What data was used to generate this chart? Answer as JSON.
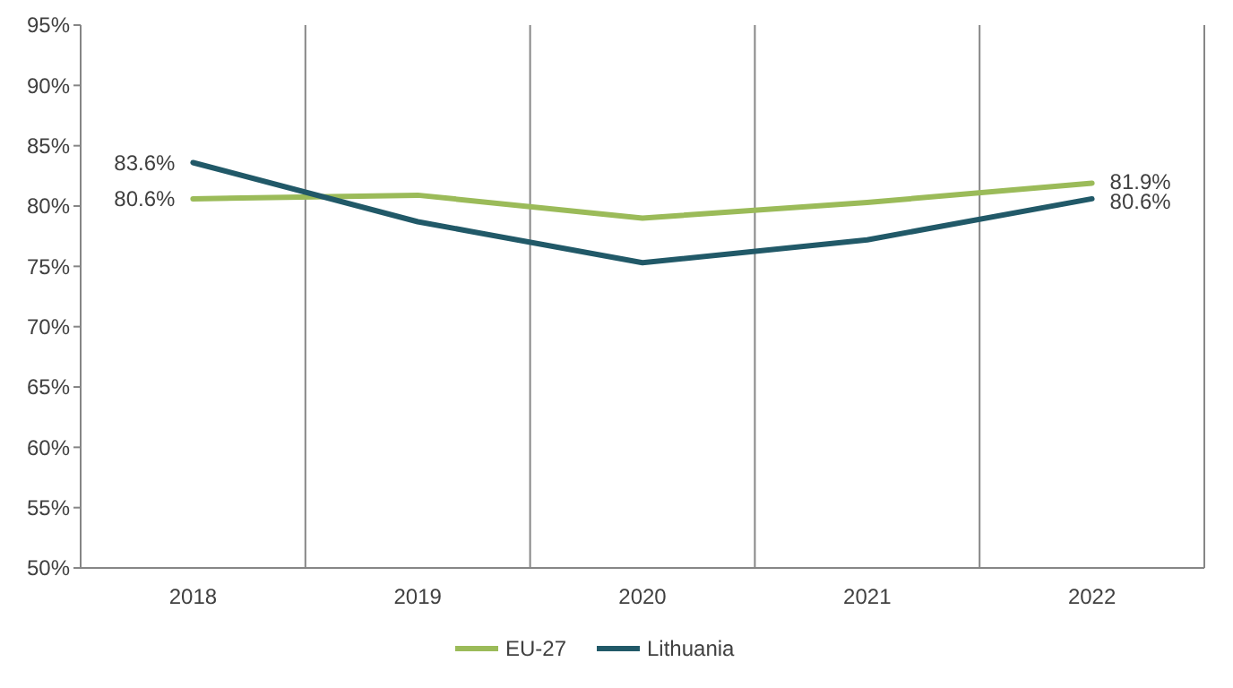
{
  "chart_data": {
    "type": "line",
    "categories": [
      "2018",
      "2019",
      "2020",
      "2021",
      "2022"
    ],
    "series": [
      {
        "name": "EU-27",
        "color": "#9bbb59",
        "values": [
          80.6,
          80.9,
          79.0,
          80.3,
          81.9
        ],
        "value_labels": [
          "80.6%",
          null,
          null,
          null,
          "81.9%"
        ]
      },
      {
        "name": "Lithuania",
        "color": "#215968",
        "values": [
          83.6,
          78.7,
          75.3,
          77.2,
          80.6
        ],
        "value_labels": [
          "83.6%",
          null,
          null,
          null,
          "80.6%"
        ]
      }
    ],
    "ylim": [
      50,
      95
    ],
    "yticks": [
      {
        "value": 50,
        "label": "50%"
      },
      {
        "value": 55,
        "label": "55%"
      },
      {
        "value": 60,
        "label": "60%"
      },
      {
        "value": 65,
        "label": "65%"
      },
      {
        "value": 70,
        "label": "70%"
      },
      {
        "value": 75,
        "label": "75%"
      },
      {
        "value": 80,
        "label": "80%"
      },
      {
        "value": 85,
        "label": "85%"
      },
      {
        "value": 90,
        "label": "90%"
      },
      {
        "value": 95,
        "label": "95%"
      }
    ],
    "grid": "x",
    "legend": "bottom"
  }
}
